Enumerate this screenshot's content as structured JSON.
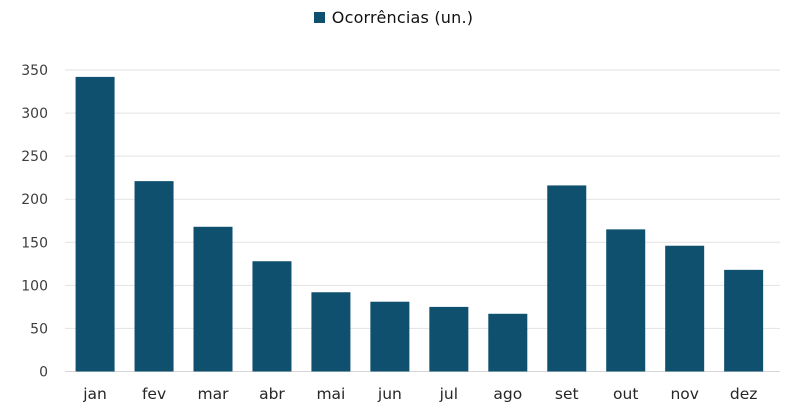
{
  "chart_data": {
    "type": "bar",
    "title": "",
    "xlabel": "",
    "ylabel": "",
    "legend": "Ocorrências (un.)",
    "legend_position": "top-center",
    "categories": [
      "jan",
      "fev",
      "mar",
      "abr",
      "mai",
      "jun",
      "jul",
      "ago",
      "set",
      "out",
      "nov",
      "dez"
    ],
    "values": [
      342,
      221,
      168,
      128,
      92,
      81,
      75,
      67,
      216,
      165,
      146,
      118
    ],
    "ylim": [
      0,
      350
    ],
    "ytick_step": 50,
    "grid": "horizontal",
    "colors": {
      "bar": "#0e506e",
      "gridline": "#e2e2e2",
      "axis_baseline": "#d6d6d6",
      "y_tick_label": "#3d3d3d",
      "x_tick_label": "#262626",
      "legend_text": "#111111",
      "background": "#ffffff"
    }
  }
}
